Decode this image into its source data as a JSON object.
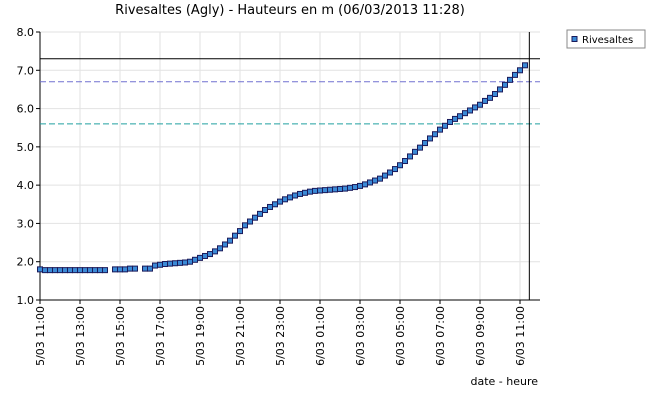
{
  "chart_data": {
    "type": "line",
    "title": "Rivesaltes (Agly) - Hauteurs en m (06/03/2013 11:28)",
    "x_label": "date - heure",
    "x": [
      "2013-03-05T11:00",
      "2013-03-05T11:15",
      "2013-03-05T11:30",
      "2013-03-05T11:45",
      "2013-03-05T12:00",
      "2013-03-05T12:15",
      "2013-03-05T12:30",
      "2013-03-05T12:45",
      "2013-03-05T13:00",
      "2013-03-05T13:15",
      "2013-03-05T13:30",
      "2013-03-05T13:45",
      "2013-03-05T14:00",
      "2013-03-05T14:15",
      "2013-03-05T14:30",
      "2013-03-05T14:45",
      "2013-03-05T15:00",
      "2013-03-05T15:15",
      "2013-03-05T15:30",
      "2013-03-05T15:45",
      "2013-03-05T16:00",
      "2013-03-05T16:15",
      "2013-03-05T16:30",
      "2013-03-05T16:45",
      "2013-03-05T17:00",
      "2013-03-05T17:15",
      "2013-03-05T17:30",
      "2013-03-05T17:45",
      "2013-03-05T18:00",
      "2013-03-05T18:15",
      "2013-03-05T18:30",
      "2013-03-05T18:45",
      "2013-03-05T19:00",
      "2013-03-05T19:15",
      "2013-03-05T19:30",
      "2013-03-05T19:45",
      "2013-03-05T20:00",
      "2013-03-05T20:15",
      "2013-03-05T20:30",
      "2013-03-05T20:45",
      "2013-03-05T21:00",
      "2013-03-05T21:15",
      "2013-03-05T21:30",
      "2013-03-05T21:45",
      "2013-03-05T22:00",
      "2013-03-05T22:15",
      "2013-03-05T22:30",
      "2013-03-05T22:45",
      "2013-03-05T23:00",
      "2013-03-05T23:15",
      "2013-03-05T23:30",
      "2013-03-05T23:45",
      "2013-03-06T00:00",
      "2013-03-06T00:15",
      "2013-03-06T00:30",
      "2013-03-06T00:45",
      "2013-03-06T01:00",
      "2013-03-06T01:15",
      "2013-03-06T01:30",
      "2013-03-06T01:45",
      "2013-03-06T02:00",
      "2013-03-06T02:15",
      "2013-03-06T02:30",
      "2013-03-06T02:45",
      "2013-03-06T03:00",
      "2013-03-06T03:15",
      "2013-03-06T03:30",
      "2013-03-06T03:45",
      "2013-03-06T04:00",
      "2013-03-06T04:15",
      "2013-03-06T04:30",
      "2013-03-06T04:45",
      "2013-03-06T05:00",
      "2013-03-06T05:15",
      "2013-03-06T05:30",
      "2013-03-06T05:45",
      "2013-03-06T06:00",
      "2013-03-06T06:15",
      "2013-03-06T06:30",
      "2013-03-06T06:45",
      "2013-03-06T07:00",
      "2013-03-06T07:15",
      "2013-03-06T07:30",
      "2013-03-06T07:45",
      "2013-03-06T08:00",
      "2013-03-06T08:15",
      "2013-03-06T08:30",
      "2013-03-06T08:45",
      "2013-03-06T09:00",
      "2013-03-06T09:15",
      "2013-03-06T09:30",
      "2013-03-06T09:45",
      "2013-03-06T10:00",
      "2013-03-06T10:15",
      "2013-03-06T10:30",
      "2013-03-06T10:45",
      "2013-03-06T11:00",
      "2013-03-06T11:15"
    ],
    "series": [
      {
        "name": "Rivesaltes",
        "color": "#3b8ad6",
        "line_color": "#1a1a5a",
        "values": [
          1.8,
          1.78,
          1.78,
          1.78,
          1.78,
          1.78,
          1.78,
          1.78,
          1.78,
          1.78,
          1.78,
          1.78,
          1.78,
          1.78,
          null,
          1.8,
          1.8,
          1.8,
          1.82,
          1.82,
          null,
          1.82,
          1.82,
          1.9,
          1.92,
          1.94,
          1.95,
          1.96,
          1.97,
          1.98,
          2.0,
          2.05,
          2.1,
          2.15,
          2.2,
          2.27,
          2.35,
          2.45,
          2.55,
          2.68,
          2.8,
          2.95,
          3.05,
          3.15,
          3.25,
          3.35,
          3.43,
          3.5,
          3.57,
          3.63,
          3.68,
          3.73,
          3.77,
          3.8,
          3.83,
          3.85,
          3.86,
          3.87,
          3.88,
          3.89,
          3.9,
          3.91,
          3.93,
          3.95,
          3.98,
          4.02,
          4.07,
          4.12,
          4.17,
          4.25,
          4.33,
          4.42,
          4.52,
          4.63,
          4.75,
          4.87,
          4.98,
          5.1,
          5.22,
          5.33,
          5.45,
          5.55,
          5.65,
          5.73,
          5.8,
          5.88,
          5.95,
          6.03,
          6.1,
          6.2,
          6.28,
          6.38,
          6.5,
          6.62,
          6.75,
          6.88,
          7.0,
          7.13
        ]
      }
    ],
    "xlim": [
      "2013-03-05T11:00",
      "2013-03-06T12:00"
    ],
    "xticks": [
      {
        "value": "2013-03-05T11:00",
        "label": "5/03 11:00"
      },
      {
        "value": "2013-03-05T13:00",
        "label": "5/03 13:00"
      },
      {
        "value": "2013-03-05T15:00",
        "label": "5/03 15:00"
      },
      {
        "value": "2013-03-05T17:00",
        "label": "5/03 17:00"
      },
      {
        "value": "2013-03-05T19:00",
        "label": "5/03 19:00"
      },
      {
        "value": "2013-03-05T21:00",
        "label": "5/03 21:00"
      },
      {
        "value": "2013-03-05T23:00",
        "label": "5/03 23:00"
      },
      {
        "value": "2013-03-06T01:00",
        "label": "6/03 01:00"
      },
      {
        "value": "2013-03-06T03:00",
        "label": "6/03 03:00"
      },
      {
        "value": "2013-03-06T05:00",
        "label": "6/03 05:00"
      },
      {
        "value": "2013-03-06T07:00",
        "label": "6/03 07:00"
      },
      {
        "value": "2013-03-06T09:00",
        "label": "6/03 09:00"
      },
      {
        "value": "2013-03-06T11:00",
        "label": "6/03 11:00"
      }
    ],
    "ylim": [
      1,
      8
    ],
    "yticks": [
      {
        "value": 1,
        "label": "1.0"
      },
      {
        "value": 2,
        "label": "2.0"
      },
      {
        "value": 3,
        "label": "3.0"
      },
      {
        "value": 4,
        "label": "4.0"
      },
      {
        "value": 5,
        "label": "5.0"
      },
      {
        "value": 6,
        "label": "6.0"
      },
      {
        "value": 7,
        "label": "7.0"
      },
      {
        "value": 8,
        "label": "8.0"
      }
    ],
    "grid": true,
    "legend": "top-right",
    "reference_lines": [
      {
        "value": 7.3,
        "color": "#000000",
        "dashed": false
      },
      {
        "value": 6.7,
        "color": "#7070d0",
        "dashed": true
      },
      {
        "value": 5.6,
        "color": "#20a0a0",
        "dashed": true
      }
    ],
    "now_marker": "2013-03-06T11:28"
  }
}
